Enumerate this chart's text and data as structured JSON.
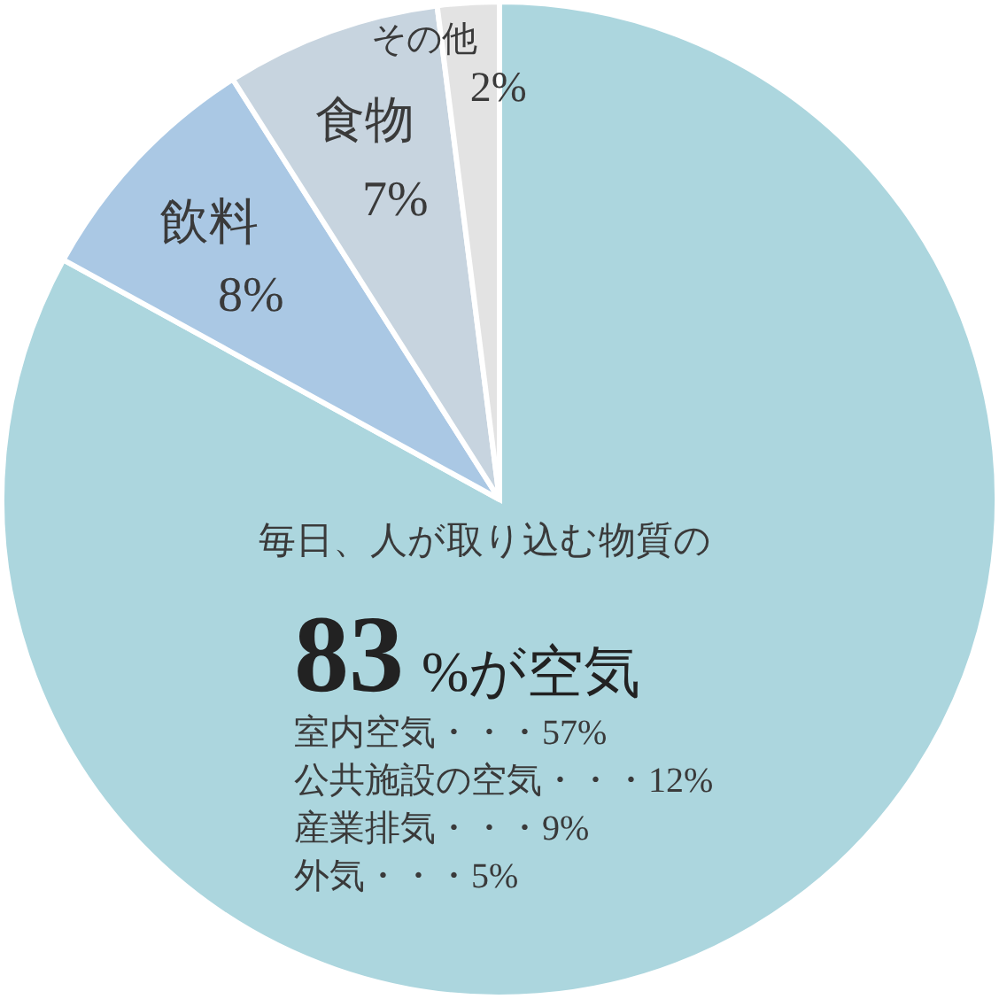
{
  "chart_data": {
    "type": "pie",
    "categories": [
      null,
      "飲料",
      "食物",
      "その他"
    ],
    "values": [
      83,
      8,
      7,
      2
    ],
    "colors": [
      "#acd6de",
      "#aac8e4",
      "#c7d4df",
      "#e3e3e3"
    ],
    "value_labels": [
      null,
      "8%",
      "7%",
      "2%"
    ],
    "annotations": [
      "毎日、人が取り込む物質の",
      "83 %が空気",
      "室内空気・・・57%",
      "公共施設の空気・・・12%",
      "産業排気・・・9%",
      "外気・・・5%"
    ]
  }
}
